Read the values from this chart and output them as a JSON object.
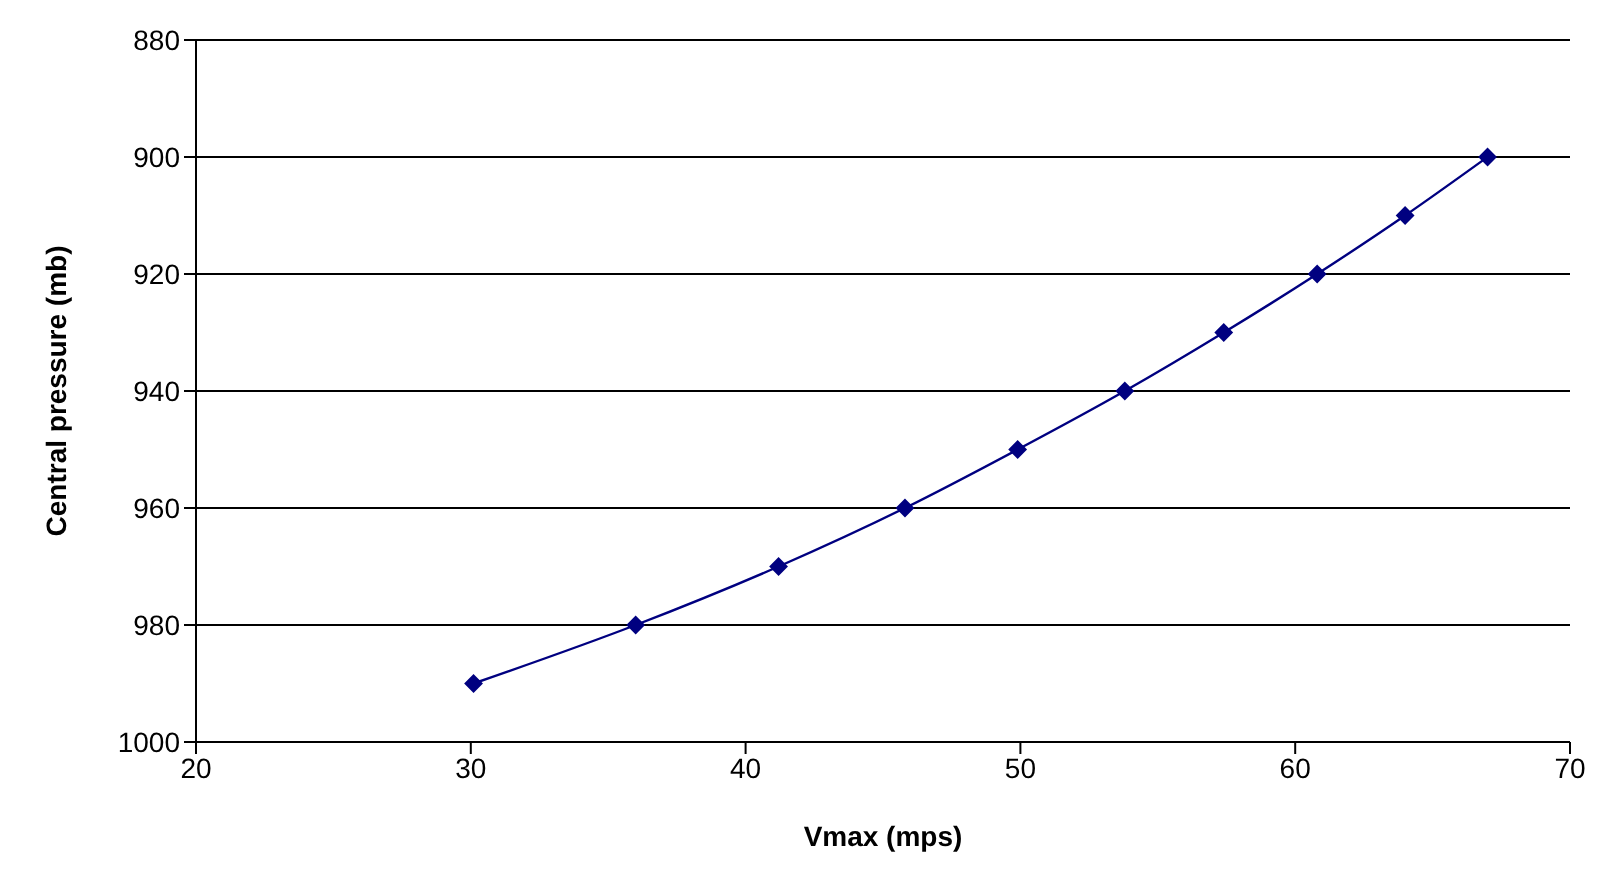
{
  "chart_data": {
    "type": "line",
    "xlabel": "Vmax (mps)",
    "ylabel": "Central pressure (mb)",
    "x": [
      30.1,
      36.0,
      41.2,
      45.8,
      49.9,
      53.8,
      57.4,
      60.8,
      64.0,
      67.0
    ],
    "series": [
      {
        "color": "#000080",
        "values": [
          990,
          980,
          970,
          960,
          950,
          940,
          930,
          920,
          910,
          900
        ]
      }
    ],
    "xlim": [
      20,
      70
    ],
    "xticks": [
      20,
      30,
      40,
      50,
      60,
      70
    ],
    "ylim": [
      1000,
      880
    ],
    "yticks": [
      880,
      900,
      920,
      940,
      960,
      980,
      1000
    ],
    "grid": "y",
    "marker": "diamond",
    "line_style": "solid",
    "legend": false
  }
}
